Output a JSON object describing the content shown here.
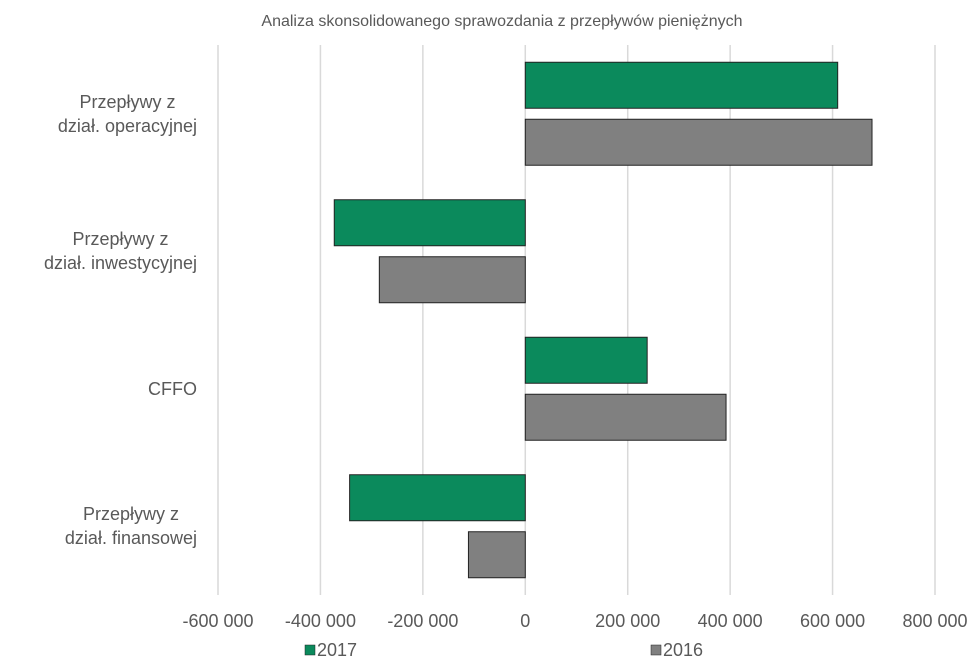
{
  "chart_data": {
    "type": "hbar",
    "title": "Analiza  skonsolidowanego sprawozdania z przepływów pieniężnych",
    "categories": [
      "Przepływy z\ndział. operacyjnej",
      "Przepływy z\ndział. inwestycyjnej",
      "CFFO",
      "Przepływy z\ndział. finansowej"
    ],
    "series": [
      {
        "name": "2017",
        "color": "#0b8a5c",
        "values": [
          610000,
          -373000,
          238000,
          -343000
        ]
      },
      {
        "name": "2016",
        "color": "#808080",
        "values": [
          677000,
          -285000,
          392000,
          -111000
        ]
      }
    ],
    "xlim": [
      -600000,
      800000
    ],
    "xticks": [
      {
        "value": -600000,
        "label": "-600 000"
      },
      {
        "value": -400000,
        "label": "-400 000"
      },
      {
        "value": -200000,
        "label": "-200 000"
      },
      0,
      {
        "value": 200000,
        "label": "200 000"
      },
      {
        "value": 400000,
        "label": "400 000"
      },
      {
        "value": 600000,
        "label": "600 000"
      },
      {
        "value": 800000,
        "label": "800 000"
      }
    ],
    "grid": true,
    "legend": "bottom"
  }
}
